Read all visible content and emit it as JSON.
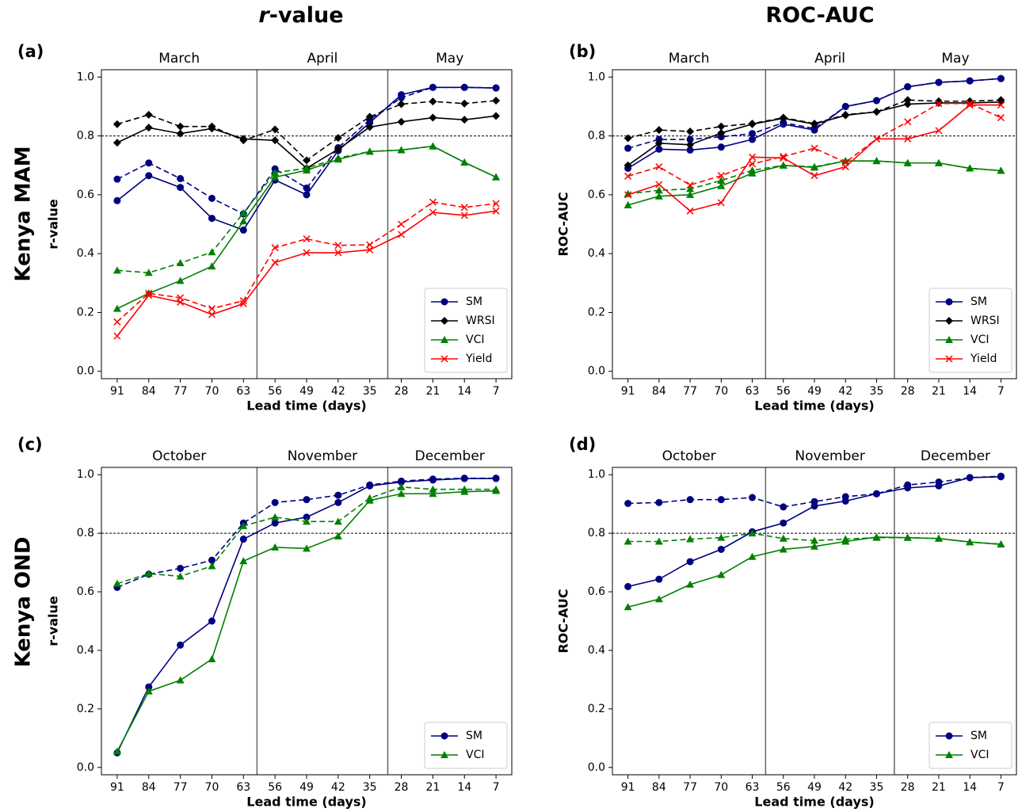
{
  "column_titles": [
    "r-value",
    "ROC-AUC"
  ],
  "row_labels": [
    "Kenya MAM",
    "Kenya OND"
  ],
  "chart_data": [
    {
      "type": "line",
      "panel_label": "(a)",
      "x_label": "Lead time (days)",
      "y_label": "r-value",
      "months": [
        "March",
        "April",
        "May"
      ],
      "month_boundaries": [
        60,
        31
      ],
      "threshold": 0.8,
      "x": [
        91,
        84,
        77,
        70,
        63,
        56,
        49,
        42,
        35,
        28,
        21,
        14,
        7
      ],
      "xlim": [
        94.5,
        3.5
      ],
      "xticks": [
        91,
        84,
        77,
        70,
        63,
        56,
        49,
        42,
        35,
        28,
        21,
        14,
        7
      ],
      "ylim": [
        -0.025,
        1.025
      ],
      "yticks": [
        {
          "value": 0,
          "label": "0.0"
        },
        0.2,
        0.4,
        0.6,
        0.8,
        {
          "value": 1,
          "label": "1.0"
        }
      ],
      "series": [
        {
          "name": "SM",
          "color": "#000080",
          "marker": "circle",
          "values": [
            0.58,
            0.665,
            0.625,
            0.52,
            0.48,
            0.65,
            0.6,
            0.75,
            0.845,
            0.94,
            0.965,
            0.965,
            0.963
          ],
          "dashed_values": [
            0.653,
            0.708,
            0.655,
            0.588,
            0.535,
            0.688,
            0.623,
            0.76,
            0.855,
            0.93,
            0.965,
            0.965,
            0.963
          ]
        },
        {
          "name": "WRSI",
          "color": "#000000",
          "marker": "diamond",
          "values": [
            0.777,
            0.828,
            0.808,
            0.825,
            0.79,
            0.785,
            0.69,
            0.755,
            0.83,
            0.848,
            0.862,
            0.855,
            0.868
          ],
          "dashed_values": [
            0.84,
            0.872,
            0.832,
            0.832,
            0.785,
            0.822,
            0.717,
            0.793,
            0.865,
            0.908,
            0.917,
            0.91,
            0.92
          ]
        },
        {
          "name": "VCI",
          "color": "#008000",
          "marker": "triangle",
          "values": [
            0.213,
            0.265,
            0.308,
            0.357,
            0.51,
            0.66,
            0.683,
            0.72,
            0.747,
            0.752,
            0.765,
            0.71,
            0.66
          ],
          "dashed_values": [
            0.343,
            0.335,
            0.368,
            0.405,
            0.538,
            0.675,
            0.69,
            0.725,
            0.747,
            0.752,
            0.765,
            0.71,
            0.66
          ]
        },
        {
          "name": "Yield",
          "color": "#ff0000",
          "marker": "x",
          "values": [
            0.12,
            0.258,
            0.235,
            0.193,
            0.23,
            0.37,
            0.403,
            0.403,
            0.413,
            0.465,
            0.54,
            0.53,
            0.545
          ],
          "dashed_values": [
            0.168,
            0.265,
            0.25,
            0.213,
            0.24,
            0.42,
            0.45,
            0.428,
            0.43,
            0.5,
            0.575,
            0.557,
            0.57
          ]
        }
      ]
    },
    {
      "type": "line",
      "panel_label": "(b)",
      "x_label": "Lead time (days)",
      "y_label": "ROC-AUC",
      "months": [
        "March",
        "April",
        "May"
      ],
      "month_boundaries": [
        60,
        31
      ],
      "threshold": 0.8,
      "x": [
        91,
        84,
        77,
        70,
        63,
        56,
        49,
        42,
        35,
        28,
        21,
        14,
        7
      ],
      "xlim": [
        94.5,
        3.5
      ],
      "xticks": [
        91,
        84,
        77,
        70,
        63,
        56,
        49,
        42,
        35,
        28,
        21,
        14,
        7
      ],
      "ylim": [
        -0.025,
        1.025
      ],
      "yticks": [
        {
          "value": 0,
          "label": "0.0"
        },
        0.2,
        0.4,
        0.6,
        0.8,
        {
          "value": 1,
          "label": "1.0"
        }
      ],
      "series": [
        {
          "name": "SM",
          "color": "#000080",
          "marker": "circle",
          "values": [
            0.69,
            0.755,
            0.752,
            0.762,
            0.788,
            0.84,
            0.82,
            0.9,
            0.92,
            0.967,
            0.982,
            0.987,
            0.995
          ],
          "dashed_values": [
            0.758,
            0.788,
            0.788,
            0.797,
            0.808,
            0.845,
            0.825,
            0.9,
            0.92,
            0.967,
            0.982,
            0.987,
            0.995
          ]
        },
        {
          "name": "WRSI",
          "color": "#000000",
          "marker": "diamond",
          "values": [
            0.7,
            0.775,
            0.77,
            0.81,
            0.84,
            0.86,
            0.84,
            0.87,
            0.882,
            0.908,
            0.912,
            0.912,
            0.915
          ],
          "dashed_values": [
            0.792,
            0.82,
            0.815,
            0.832,
            0.842,
            0.862,
            0.842,
            0.872,
            0.882,
            0.922,
            0.918,
            0.918,
            0.922
          ]
        },
        {
          "name": "VCI",
          "color": "#008000",
          "marker": "triangle",
          "values": [
            0.565,
            0.595,
            0.6,
            0.63,
            0.673,
            0.7,
            0.693,
            0.715,
            0.715,
            0.708,
            0.708,
            0.69,
            0.682
          ],
          "dashed_values": [
            0.603,
            0.615,
            0.62,
            0.648,
            0.683,
            0.7,
            0.695,
            0.715,
            0.715,
            0.708,
            0.708,
            0.69,
            0.682
          ]
        },
        {
          "name": "Yield",
          "color": "#ff0000",
          "marker": "x",
          "values": [
            0.6,
            0.635,
            0.545,
            0.573,
            0.728,
            0.725,
            0.665,
            0.695,
            0.79,
            0.79,
            0.818,
            0.905,
            0.905
          ],
          "dashed_values": [
            0.663,
            0.695,
            0.633,
            0.665,
            0.705,
            0.73,
            0.758,
            0.71,
            0.79,
            0.848,
            0.91,
            0.91,
            0.862
          ]
        }
      ]
    },
    {
      "type": "line",
      "panel_label": "(c)",
      "x_label": "Lead time (days)",
      "y_label": "r-value",
      "months": [
        "October",
        "November",
        "December"
      ],
      "month_boundaries": [
        60,
        31
      ],
      "threshold": 0.8,
      "x": [
        91,
        84,
        77,
        70,
        63,
        56,
        49,
        42,
        35,
        28,
        21,
        14,
        7
      ],
      "xlim": [
        94.5,
        3.5
      ],
      "xticks": [
        91,
        84,
        77,
        70,
        63,
        56,
        49,
        42,
        35,
        28,
        21,
        14,
        7
      ],
      "ylim": [
        -0.025,
        1.025
      ],
      "yticks": [
        {
          "value": 0,
          "label": "0.0"
        },
        0.2,
        0.4,
        0.6,
        0.8,
        {
          "value": 1,
          "label": "1.0"
        }
      ],
      "series": [
        {
          "name": "SM",
          "color": "#000080",
          "marker": "circle",
          "values": [
            0.05,
            0.275,
            0.418,
            0.5,
            0.78,
            0.835,
            0.855,
            0.905,
            0.962,
            0.975,
            0.982,
            0.987,
            0.987
          ],
          "dashed_values": [
            0.615,
            0.66,
            0.68,
            0.708,
            0.835,
            0.905,
            0.915,
            0.93,
            0.965,
            0.978,
            0.985,
            0.988,
            0.988
          ]
        },
        {
          "name": "VCI",
          "color": "#008000",
          "marker": "triangle",
          "values": [
            0.055,
            0.26,
            0.298,
            0.37,
            0.705,
            0.752,
            0.748,
            0.79,
            0.912,
            0.935,
            0.935,
            0.942,
            0.945
          ],
          "dashed_values": [
            0.628,
            0.662,
            0.653,
            0.688,
            0.825,
            0.855,
            0.84,
            0.84,
            0.92,
            0.958,
            0.95,
            0.95,
            0.95
          ]
        }
      ]
    },
    {
      "type": "line",
      "panel_label": "(d)",
      "x_label": "Lead time (days)",
      "y_label": "ROC-AUC",
      "months": [
        "October",
        "November",
        "December"
      ],
      "month_boundaries": [
        60,
        31
      ],
      "threshold": 0.8,
      "x": [
        91,
        84,
        77,
        70,
        63,
        56,
        49,
        42,
        35,
        28,
        21,
        14,
        7
      ],
      "xlim": [
        94.5,
        3.5
      ],
      "xticks": [
        91,
        84,
        77,
        70,
        63,
        56,
        49,
        42,
        35,
        28,
        21,
        14,
        7
      ],
      "ylim": [
        -0.025,
        1.025
      ],
      "yticks": [
        {
          "value": 0,
          "label": "0.0"
        },
        0.2,
        0.4,
        0.6,
        0.8,
        {
          "value": 1,
          "label": "1.0"
        }
      ],
      "series": [
        {
          "name": "SM",
          "color": "#000080",
          "marker": "circle",
          "values": [
            0.618,
            0.643,
            0.703,
            0.745,
            0.805,
            0.835,
            0.893,
            0.91,
            0.935,
            0.955,
            0.962,
            0.99,
            0.993
          ],
          "dashed_values": [
            0.902,
            0.905,
            0.915,
            0.915,
            0.922,
            0.89,
            0.908,
            0.925,
            0.935,
            0.965,
            0.975,
            0.99,
            0.995
          ]
        },
        {
          "name": "VCI",
          "color": "#008000",
          "marker": "triangle",
          "values": [
            0.548,
            0.575,
            0.625,
            0.658,
            0.72,
            0.745,
            0.755,
            0.772,
            0.787,
            0.785,
            0.782,
            0.77,
            0.762
          ],
          "dashed_values": [
            0.772,
            0.772,
            0.78,
            0.785,
            0.8,
            0.782,
            0.775,
            0.78,
            0.785,
            0.785,
            0.782,
            0.77,
            0.763
          ]
        }
      ]
    }
  ]
}
